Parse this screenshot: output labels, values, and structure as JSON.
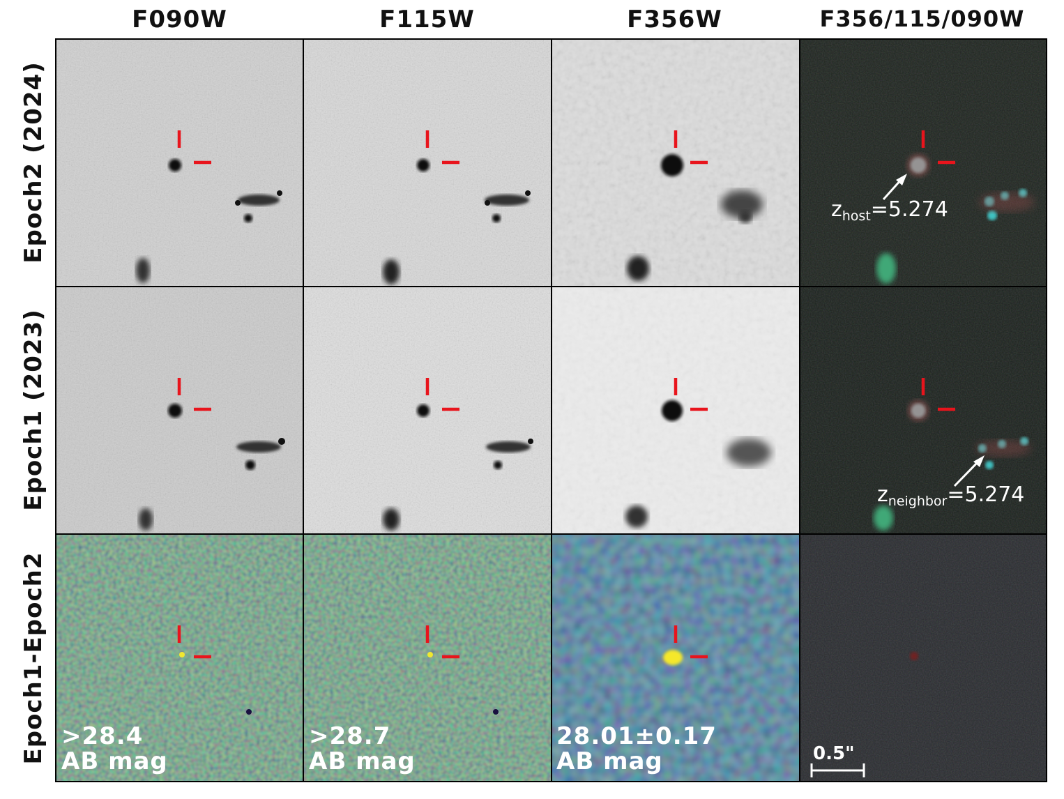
{
  "columns": [
    "F090W",
    "F115W",
    "F356W",
    "F356/115/090W"
  ],
  "rows": [
    "Epoch2 (2024)",
    "Epoch1 (2023)",
    "Epoch1-Epoch2"
  ],
  "annotations": {
    "host_label": "z",
    "host_sub": "host",
    "host_value": "=5.274",
    "neighbor_label": "z",
    "neighbor_sub": "neighbor",
    "neighbor_value": "=5.274"
  },
  "magnitudes": [
    {
      "value": ">28.4",
      "unit": "AB mag"
    },
    {
      "value": ">28.7",
      "unit": "AB mag"
    },
    {
      "value": "28.01±0.17",
      "unit": "AB mag"
    }
  ],
  "scalebar": {
    "label": "0.5\""
  },
  "colors": {
    "marker": "#e8141c",
    "gray_background": "#d4d4d4",
    "viridis_background": "#2a8a7c",
    "rgb_background": "#1e2420"
  }
}
